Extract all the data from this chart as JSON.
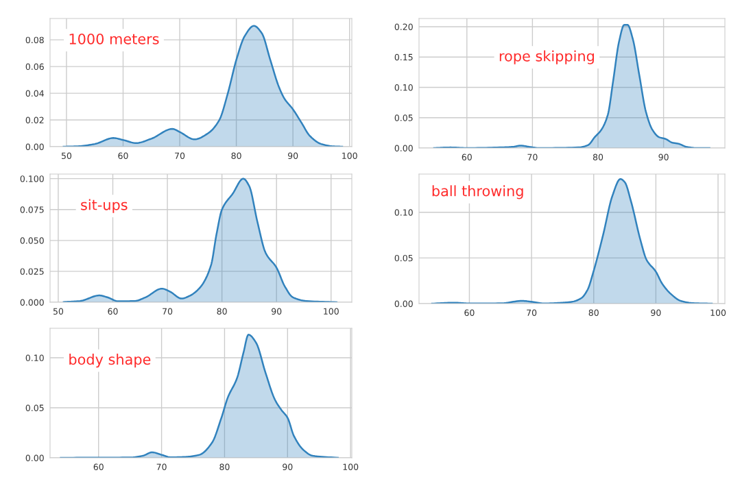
{
  "chart_data": [
    {
      "type": "area",
      "title": "1000 meters",
      "color": "#3182bd",
      "grid": true,
      "xlim": [
        47.1,
        100.4
      ],
      "ylim": [
        0,
        0.096
      ],
      "xticks": [
        50,
        60,
        70,
        80,
        90,
        100
      ],
      "yticks": [
        {
          "value": 0,
          "label": "0.00"
        },
        {
          "value": 0.02,
          "label": "0.02"
        },
        {
          "value": 0.04,
          "label": "0.04"
        },
        {
          "value": 0.06,
          "label": "0.06"
        },
        {
          "value": 0.08,
          "label": "0.08"
        }
      ],
      "x": [
        49.5,
        52,
        55,
        58.3,
        60,
        62.3,
        65,
        68.7,
        70,
        72.6,
        75,
        77,
        78.5,
        80,
        81.5,
        83.1,
        84.5,
        86,
        87.5,
        88.5,
        90,
        91.5,
        93,
        95,
        97,
        98.7
      ],
      "values": [
        0,
        0.0003,
        0.002,
        0.0065,
        0.005,
        0.0027,
        0.006,
        0.0133,
        0.011,
        0.0055,
        0.01,
        0.02,
        0.04,
        0.065,
        0.083,
        0.0905,
        0.085,
        0.065,
        0.045,
        0.036,
        0.028,
        0.018,
        0.008,
        0.002,
        0.0003,
        0
      ]
    },
    {
      "type": "area",
      "title": "rope skipping",
      "color": "#3182bd",
      "grid": true,
      "xlim": [
        52.7,
        99.35
      ],
      "ylim": [
        0,
        0.2135
      ],
      "xticks": [
        60,
        70,
        80,
        90
      ],
      "yticks": [
        {
          "value": 0,
          "label": "0.00"
        },
        {
          "value": 0.05,
          "label": "0.05"
        },
        {
          "value": 0.1,
          "label": "0.10"
        },
        {
          "value": 0.15,
          "label": "0.15"
        },
        {
          "value": 0.2,
          "label": "0.20"
        }
      ],
      "x": [
        55,
        57.5,
        60,
        65,
        67,
        68.2,
        69.5,
        71,
        77,
        78.5,
        79.5,
        80.5,
        81.5,
        82.3,
        83.2,
        84,
        84.5,
        85.3,
        86.3,
        87.3,
        88.3,
        89.3,
        90.3,
        91.3,
        92.3,
        93.5,
        95,
        97
      ],
      "values": [
        0,
        0.001,
        0,
        0.001,
        0.002,
        0.004,
        0.002,
        0,
        0.001,
        0.005,
        0.018,
        0.03,
        0.055,
        0.11,
        0.175,
        0.203,
        0.203,
        0.18,
        0.12,
        0.06,
        0.03,
        0.018,
        0.015,
        0.009,
        0.007,
        0.002,
        0,
        0
      ]
    },
    {
      "type": "area",
      "title": "sit-ups",
      "color": "#3182bd",
      "grid": true,
      "xlim": [
        48.5,
        103.8
      ],
      "ylim": [
        0,
        0.1037
      ],
      "xticks": [
        50,
        60,
        70,
        80,
        90,
        100
      ],
      "yticks": [
        {
          "value": 0,
          "label": "0.000"
        },
        {
          "value": 0.025,
          "label": "0.025"
        },
        {
          "value": 0.05,
          "label": "0.050"
        },
        {
          "value": 0.075,
          "label": "0.075"
        },
        {
          "value": 0.1,
          "label": "0.100"
        }
      ],
      "x": [
        51,
        54,
        57.5,
        59,
        61,
        64,
        66,
        69,
        70.5,
        72.6,
        74,
        76,
        78,
        79,
        80,
        82,
        83.9,
        85,
        86.5,
        88,
        90,
        91.5,
        93,
        95.5,
        101
      ],
      "values": [
        0.0002,
        0.001,
        0.0055,
        0.004,
        0.0008,
        0.001,
        0.004,
        0.011,
        0.0085,
        0.003,
        0.005,
        0.012,
        0.03,
        0.055,
        0.075,
        0.088,
        0.1,
        0.094,
        0.065,
        0.04,
        0.028,
        0.013,
        0.004,
        0.001,
        0
      ]
    },
    {
      "type": "area",
      "title": "ball throwing",
      "color": "#3182bd",
      "grid": true,
      "xlim": [
        51.9,
        101.1
      ],
      "ylim": [
        0,
        0.1419
      ],
      "xticks": [
        60,
        70,
        80,
        90,
        100
      ],
      "yticks": [
        {
          "value": 0,
          "label": "0.00"
        },
        {
          "value": 0.05,
          "label": "0.05"
        },
        {
          "value": 0.1,
          "label": "0.10"
        }
      ],
      "x": [
        54,
        57.5,
        60,
        65,
        68.5,
        70,
        72,
        75,
        76.5,
        78,
        79,
        80,
        81.5,
        83,
        84.3,
        85,
        86,
        87.5,
        88.5,
        90,
        91,
        92.5,
        94,
        96,
        99
      ],
      "values": [
        0,
        0.001,
        0.0002,
        0.0003,
        0.003,
        0.002,
        0.0002,
        0.001,
        0.002,
        0.006,
        0.015,
        0.036,
        0.075,
        0.118,
        0.1365,
        0.133,
        0.112,
        0.07,
        0.048,
        0.035,
        0.022,
        0.01,
        0.003,
        0.0005,
        0
      ]
    },
    {
      "type": "area",
      "title": "body shape",
      "color": "#3182bd",
      "grid": true,
      "xlim": [
        52.3,
        100.2
      ],
      "ylim": [
        0,
        0.1294
      ],
      "xticks": [
        60,
        70,
        80,
        90,
        100
      ],
      "yticks": [
        {
          "value": 0,
          "label": "0.00"
        },
        {
          "value": 0.05,
          "label": "0.05"
        },
        {
          "value": 0.1,
          "label": "0.10"
        }
      ],
      "x": [
        54,
        60,
        65,
        67,
        68.5,
        70,
        71.5,
        74,
        76,
        78,
        79.5,
        80.5,
        82,
        83,
        83.8,
        85,
        86.5,
        88,
        89,
        90,
        91,
        92.5,
        94,
        98
      ],
      "values": [
        0,
        0.0002,
        0.0003,
        0.002,
        0.0055,
        0.003,
        0.0005,
        0.001,
        0.003,
        0.015,
        0.04,
        0.06,
        0.08,
        0.105,
        0.123,
        0.115,
        0.085,
        0.058,
        0.048,
        0.04,
        0.022,
        0.008,
        0.002,
        0
      ]
    }
  ]
}
